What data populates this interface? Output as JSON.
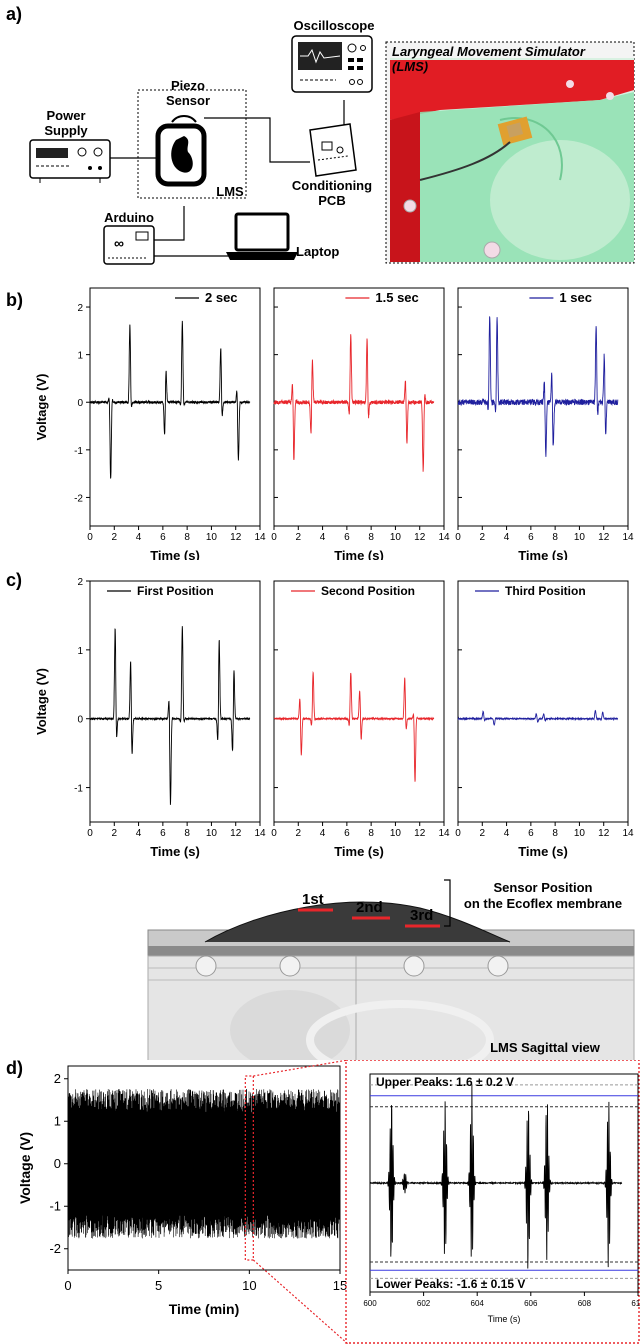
{
  "panel_a": {
    "letter": "a)",
    "labels": {
      "oscilloscope": "Oscilloscope",
      "piezo_sensor": "Piezo\nSensor",
      "power_supply": "Power\nSupply",
      "lms_box": "LMS",
      "conditioning_pcb": "Conditioning\nPCB",
      "arduino": "Arduino",
      "laptop": "Laptop",
      "simulator_title": "Laryngeal Movement Simulator\n(LMS)"
    },
    "icons": [
      "oscilloscope-icon",
      "power-supply-icon",
      "piezo-sensor-icon",
      "pcb-icon",
      "arduino-icon",
      "laptop-icon"
    ]
  },
  "panel_b": {
    "letter": "b)"
  },
  "panel_c": {
    "letter": "c)"
  },
  "panel_d": {
    "letter": "d)"
  },
  "sagittal": {
    "positions": [
      "1st",
      "2nd",
      "3rd"
    ],
    "bracket_label_1": "Sensor Position",
    "bracket_label_2": "on the Ecoflex membrane",
    "view_label": "LMS Sagittal view",
    "accent_color": "#e8262b"
  },
  "chart_data": [
    {
      "id": "b1",
      "type": "line",
      "ylabel": "Voltage (V)",
      "xlabel": "Time (s)",
      "xlim": [
        0,
        14
      ],
      "ylim": [
        -2.6,
        2.4
      ],
      "xticks": [
        0,
        2,
        4,
        6,
        8,
        10,
        12,
        14
      ],
      "yticks": [
        -2,
        -1,
        0,
        1,
        2
      ],
      "series": [
        {
          "name": "2 sec",
          "color": "#000000",
          "noise": 0.025,
          "bursts": [
            {
              "x": 1.7,
              "amp": 1.85,
              "neg": 1.6
            },
            {
              "x": 3.3,
              "amp": 1.7,
              "neg": 1.0
            },
            {
              "x": 6.2,
              "amp": 1.45,
              "neg": 1.3
            },
            {
              "x": 7.6,
              "amp": 1.7,
              "neg": 1.25
            },
            {
              "x": 10.8,
              "amp": 1.45,
              "neg": 1.25
            },
            {
              "x": 12.2,
              "amp": 1.75,
              "neg": 1.35
            }
          ]
        }
      ]
    },
    {
      "id": "b2",
      "type": "line",
      "ylabel": "",
      "xlabel": "Time (s)",
      "xlim": [
        0,
        14
      ],
      "ylim": [
        -2.6,
        2.4
      ],
      "xticks": [
        0,
        2,
        4,
        6,
        8,
        10,
        12,
        14
      ],
      "yticks": [
        -2,
        -1,
        0,
        1,
        2
      ],
      "series": [
        {
          "name": "1.5 sec",
          "color": "#e8262b",
          "noise": 0.04,
          "bursts": [
            {
              "x": 1.6,
              "amp": 1.3,
              "neg": 1.7
            },
            {
              "x": 3.1,
              "amp": 1.95,
              "neg": 1.3
            },
            {
              "x": 6.3,
              "amp": 1.6,
              "neg": 1.8
            },
            {
              "x": 7.7,
              "amp": 1.75,
              "neg": 1.25
            },
            {
              "x": 10.9,
              "amp": 1.45,
              "neg": 1.3
            },
            {
              "x": 12.3,
              "amp": 1.8,
              "neg": 1.5
            }
          ]
        }
      ]
    },
    {
      "id": "b3",
      "type": "line",
      "ylabel": "",
      "xlabel": "Time (s)",
      "xlim": [
        0,
        14
      ],
      "ylim": [
        -2.6,
        2.4
      ],
      "xticks": [
        0,
        2,
        4,
        6,
        8,
        10,
        12,
        14
      ],
      "yticks": [
        -2,
        -1,
        0,
        1,
        2
      ],
      "series": [
        {
          "name": "1 sec",
          "color": "#1f1f9e",
          "noise": 0.06,
          "bursts": [
            {
              "x": 2.6,
              "amp": 1.9,
              "neg": 1.4
            },
            {
              "x": 3.2,
              "amp": 1.95,
              "neg": 1.4
            },
            {
              "x": 7.2,
              "amp": 1.9,
              "neg": 1.45
            },
            {
              "x": 7.8,
              "amp": 1.95,
              "neg": 1.35
            },
            {
              "x": 11.4,
              "amp": 1.9,
              "neg": 1.45
            },
            {
              "x": 12.1,
              "amp": 1.95,
              "neg": 1.4
            }
          ]
        }
      ]
    },
    {
      "id": "c1",
      "type": "line",
      "ylabel": "Voltage (V)",
      "xlabel": "Time (s)",
      "xlim": [
        0,
        14
      ],
      "ylim": [
        -1.5,
        2.0
      ],
      "xticks": [
        0,
        2,
        4,
        6,
        8,
        10,
        12,
        14
      ],
      "yticks": [
        -1,
        0,
        1,
        2
      ],
      "series": [
        {
          "name": "First Position",
          "color": "#000000",
          "noise": 0.01,
          "bursts": [
            {
              "x": 2.1,
              "amp": 1.6,
              "neg": 1.4
            },
            {
              "x": 3.4,
              "amp": 1.5,
              "neg": 1.2
            },
            {
              "x": 6.6,
              "amp": 1.55,
              "neg": 1.45
            },
            {
              "x": 7.6,
              "amp": 1.35,
              "neg": 1.1
            },
            {
              "x": 10.6,
              "amp": 1.6,
              "neg": 1.1
            },
            {
              "x": 11.8,
              "amp": 1.35,
              "neg": 1.0
            }
          ]
        }
      ]
    },
    {
      "id": "c2",
      "type": "line",
      "ylabel": "",
      "xlabel": "Time (s)",
      "xlim": [
        0,
        14
      ],
      "ylim": [
        -1.5,
        2.0
      ],
      "xticks": [
        0,
        2,
        4,
        6,
        8,
        10,
        12,
        14
      ],
      "yticks": [
        -1,
        0,
        1,
        2
      ],
      "series": [
        {
          "name": "Second Position",
          "color": "#e8262b",
          "noise": 0.01,
          "bursts": [
            {
              "x": 2.2,
              "amp": 0.8,
              "neg": 0.85
            },
            {
              "x": 3.2,
              "amp": 0.75,
              "neg": 0.75
            },
            {
              "x": 6.3,
              "amp": 0.75,
              "neg": 0.65
            },
            {
              "x": 7.1,
              "amp": 0.6,
              "neg": 0.95
            },
            {
              "x": 10.8,
              "amp": 0.75,
              "neg": 0.65
            },
            {
              "x": 11.6,
              "amp": 0.65,
              "neg": 0.95
            }
          ]
        }
      ]
    },
    {
      "id": "c3",
      "type": "line",
      "ylabel": "",
      "xlabel": "Time (s)",
      "xlim": [
        0,
        14
      ],
      "ylim": [
        -1.5,
        2.0
      ],
      "xticks": [
        0,
        2,
        4,
        6,
        8,
        10,
        12,
        14
      ],
      "yticks": [
        -1,
        0,
        1,
        2
      ],
      "series": [
        {
          "name": "Third Position",
          "color": "#1f1f9e",
          "noise": 0.008,
          "bursts": [
            {
              "x": 2.1,
              "amp": 0.13,
              "neg": 0.12
            },
            {
              "x": 3.0,
              "amp": 0.1,
              "neg": 0.1
            },
            {
              "x": 6.5,
              "amp": 0.12,
              "neg": 0.12
            },
            {
              "x": 7.1,
              "amp": 0.1,
              "neg": 0.08
            },
            {
              "x": 11.3,
              "amp": 0.12,
              "neg": 0.1
            },
            {
              "x": 11.9,
              "amp": 0.1,
              "neg": 0.12
            }
          ]
        }
      ]
    },
    {
      "id": "d1",
      "type": "line",
      "ylabel": "Voltage (V)",
      "xlabel": "Time (min)",
      "xlim": [
        0,
        15
      ],
      "ylim": [
        -2.5,
        2.3
      ],
      "xticks": [
        0,
        5,
        10,
        15
      ],
      "yticks": [
        -2,
        -1,
        0,
        1,
        2
      ],
      "series": [
        {
          "name": "",
          "color": "#000000",
          "peak_high": 1.6,
          "peak_low": -1.6
        }
      ]
    },
    {
      "id": "d2",
      "type": "line",
      "ylabel": "",
      "xlabel": "Time (s)",
      "xlim": [
        600,
        610
      ],
      "ylim": [
        -2.0,
        2.0
      ],
      "xticks": [
        600,
        602,
        604,
        606,
        608,
        610
      ],
      "upper_label": "Upper Peaks: 1.6 ± 0.2 V",
      "lower_label": "Lower Peaks: -1.6 ± 0.15 V",
      "upper_mean": 1.6,
      "upper_sd": 0.2,
      "lower_mean": -1.6,
      "lower_sd": 0.15,
      "series": [
        {
          "name": "",
          "color": "#000000",
          "noise": 0.01,
          "bursts": [
            {
              "x": 600.8,
              "amp": 1.6,
              "neg": 1.55
            },
            {
              "x": 601.3,
              "amp": 0.2,
              "neg": 0.2
            },
            {
              "x": 602.8,
              "amp": 1.55,
              "neg": 1.45
            },
            {
              "x": 603.8,
              "amp": 1.8,
              "neg": 1.5
            },
            {
              "x": 605.9,
              "amp": 1.55,
              "neg": 1.7
            },
            {
              "x": 606.6,
              "amp": 1.6,
              "neg": 1.45
            },
            {
              "x": 608.9,
              "amp": 1.55,
              "neg": 1.6
            },
            {
              "x": 609.6,
              "amp": 1.6,
              "neg": 1.5
            }
          ]
        }
      ]
    }
  ]
}
